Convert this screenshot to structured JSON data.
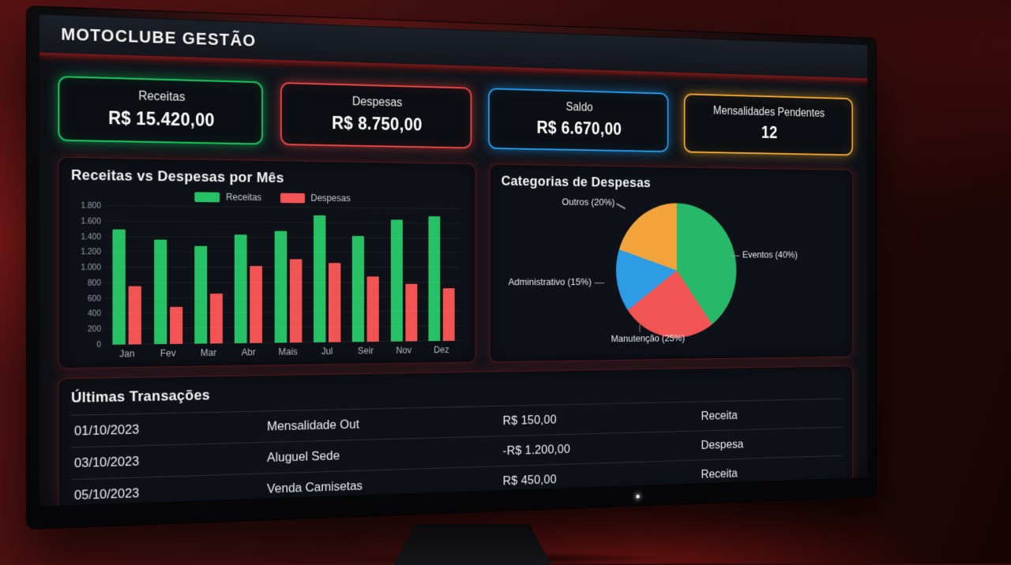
{
  "app": {
    "title": "MOTOCLUBE GESTÃO"
  },
  "summary_cards": [
    {
      "label": "Receitas",
      "value": "R$ 15.420,00",
      "accent": "#12c85e"
    },
    {
      "label": "Despesas",
      "value": "R$ 8.750,00",
      "accent": "#ef4440"
    },
    {
      "label": "Saldo",
      "value": "R$ 6.670,00",
      "accent": "#1f9df0"
    },
    {
      "label": "Mensalidades Pendentes",
      "value": "12",
      "accent": "#f5a92b"
    }
  ],
  "chart_data": [
    {
      "type": "bar",
      "title": "Receitas vs Despesas por Mês",
      "categories": [
        "Jan",
        "Fev",
        "Mar",
        "Abr",
        "Mais",
        "Jul",
        "Seir",
        "Nov",
        "Dez"
      ],
      "series": [
        {
          "name": "Receitas",
          "color": "#25c164",
          "values": [
            1500,
            1370,
            1280,
            1440,
            1490,
            1700,
            1430,
            1650,
            1700
          ]
        },
        {
          "name": "Despesas",
          "color": "#f25353",
          "values": [
            760,
            490,
            660,
            1020,
            1110,
            1060,
            880,
            780,
            720
          ]
        }
      ],
      "ylim": [
        0,
        1800
      ],
      "y_ticks": [
        "0",
        "200",
        "400",
        "600",
        "800",
        "1.000",
        "1.200",
        "1.400",
        "1.600",
        "1.800"
      ],
      "grid": true,
      "legend_position": "top"
    },
    {
      "type": "pie",
      "title": "Categorias de Despesas",
      "start_angle_deg": 0,
      "direction": "clockwise",
      "slices": [
        {
          "name": "Eventos",
          "pct": 40,
          "label": "Eventos (40%)",
          "color": "#28b869"
        },
        {
          "name": "Manutenção",
          "pct": 25,
          "label": "Manutenção (25%)",
          "color": "#f25353"
        },
        {
          "name": "Administrativo",
          "pct": 15,
          "label": "Administrativo (15%)",
          "color": "#2e9ce4"
        },
        {
          "name": "Outros",
          "pct": 20,
          "label": "Outros (20%)",
          "color": "#f2a33c"
        }
      ]
    }
  ],
  "transactions": {
    "title": "Últimas Transações",
    "rows": [
      {
        "date": "01/10/2023",
        "description": "Mensalidade Out",
        "amount": "R$ 150,00",
        "type": "Receita"
      },
      {
        "date": "03/10/2023",
        "description": "Aluguel Sede",
        "amount": "-R$ 1.200,00",
        "type": "Despesa"
      },
      {
        "date": "05/10/2023",
        "description": "Venda Camisetas",
        "amount": "R$ 450,00",
        "type": "Receita"
      }
    ]
  }
}
